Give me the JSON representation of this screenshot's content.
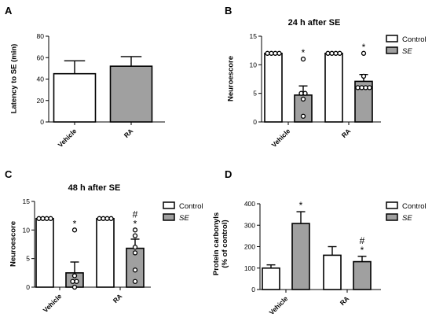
{
  "colors": {
    "control": "#ffffff",
    "se": "#a0a0a0",
    "stroke": "#000000"
  },
  "chart_data": [
    {
      "panel": "A",
      "type": "bar",
      "title": "",
      "ylabel": "Latency to SE (min)",
      "ylim": [
        0,
        80
      ],
      "yticks": [
        "0",
        "20",
        "40",
        "60",
        "80"
      ],
      "categories": [
        "Vehicle",
        "RA"
      ],
      "series": [
        {
          "values": [
            45,
            52
          ],
          "errors": [
            12,
            9
          ],
          "colors": [
            "#ffffff",
            "#a0a0a0"
          ]
        }
      ]
    },
    {
      "panel": "B",
      "type": "bar",
      "title": "24 h after SE",
      "ylabel": "Neuroescore",
      "ylim": [
        0,
        15
      ],
      "yticks": [
        "0",
        "5",
        "10",
        "15"
      ],
      "categories": [
        "Vehicle",
        "RA"
      ],
      "legend": {
        "position": "right",
        "items": [
          "Control",
          "SE"
        ]
      },
      "series": [
        {
          "name": "Control",
          "values": [
            12,
            12
          ],
          "errors": [
            0,
            0
          ],
          "points": [
            [
              12,
              12,
              12,
              12
            ],
            [
              12,
              12,
              12,
              12
            ]
          ]
        },
        {
          "name": "SE",
          "values": [
            4.7,
            7.1
          ],
          "errors": [
            1.6,
            1.2
          ],
          "points": [
            [
              11,
              5,
              5,
              4,
              1
            ],
            [
              12,
              8,
              6,
              6,
              6,
              6
            ]
          ],
          "annotations": [
            "*",
            "*"
          ]
        }
      ]
    },
    {
      "panel": "C",
      "type": "bar",
      "title": "48 h after SE",
      "ylabel": "Neuroescore",
      "ylim": [
        0,
        15
      ],
      "yticks": [
        "0",
        "5",
        "10",
        "15"
      ],
      "categories": [
        "Vehicle",
        "RA"
      ],
      "legend": {
        "position": "right",
        "items": [
          "Control",
          "SE"
        ]
      },
      "series": [
        {
          "name": "Control",
          "values": [
            12,
            12
          ],
          "errors": [
            0,
            0
          ],
          "points": [
            [
              12,
              12,
              12,
              12
            ],
            [
              12,
              12,
              12,
              12
            ]
          ]
        },
        {
          "name": "SE",
          "values": [
            2.5,
            6.8
          ],
          "errors": [
            1.9,
            1.6
          ],
          "points": [
            [
              10,
              2,
              1,
              1,
              0
            ],
            [
              10,
              9,
              7,
              6,
              3,
              1
            ]
          ],
          "annotations": [
            "*",
            "#\n*"
          ]
        }
      ]
    },
    {
      "panel": "D",
      "type": "bar",
      "title": "",
      "ylabel": "Protein carbonyls\n(% of control)",
      "ylim": [
        0,
        400
      ],
      "yticks": [
        "0",
        "100",
        "200",
        "300",
        "400"
      ],
      "categories": [
        "Vehicle",
        "RA"
      ],
      "legend": {
        "position": "right",
        "items": [
          "Control",
          "SE"
        ]
      },
      "series": [
        {
          "name": "Control",
          "values": [
            100,
            160
          ],
          "errors": [
            15,
            40
          ],
          "points": null
        },
        {
          "name": "SE",
          "values": [
            308,
            130
          ],
          "errors": [
            55,
            25
          ],
          "points": null,
          "annotations": [
            "*",
            "#\n*"
          ]
        }
      ]
    }
  ]
}
